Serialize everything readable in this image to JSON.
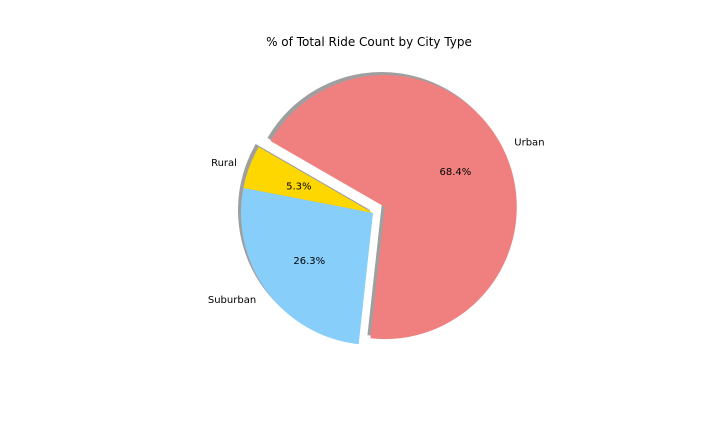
{
  "chart_data": {
    "type": "pie",
    "title": "% of Total Ride Count by City Type",
    "categories": [
      "Rural",
      "Suburban",
      "Urban"
    ],
    "values": [
      5.3,
      26.3,
      68.4
    ],
    "value_labels": [
      "5.3%",
      "26.3%",
      "68.4%"
    ],
    "colors": [
      "#ffd700",
      "#87cefa",
      "#f08080"
    ],
    "explode": [
      0,
      0,
      0.1
    ],
    "shadow": true,
    "start_angle_deg": 150,
    "legend": "none",
    "grid": false
  }
}
